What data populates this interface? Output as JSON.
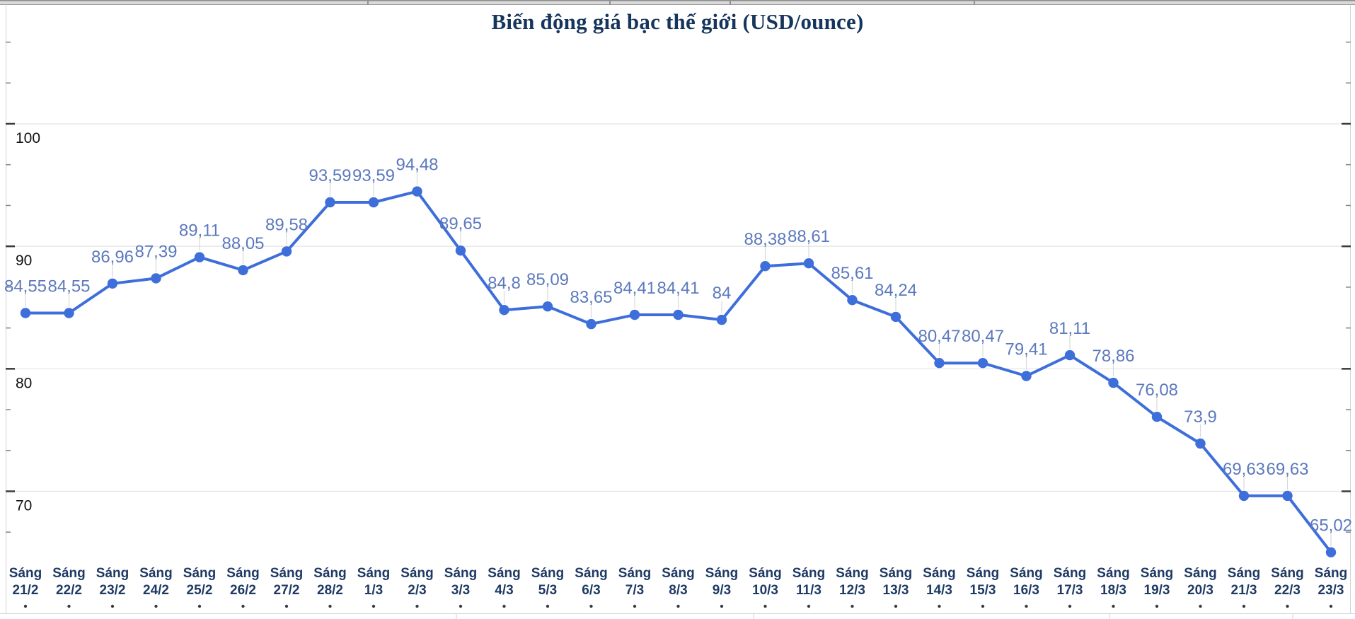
{
  "chart": {
    "title": "Biến động giá bạc thế giới (USD/ounce)"
  },
  "chart_data": {
    "type": "line",
    "title": "Biến động giá bạc thế giới (USD/ounce)",
    "categories": [
      "Sáng 21/2",
      "Sáng 22/2",
      "Sáng 23/2",
      "Sáng 24/2",
      "Sáng 25/2",
      "Sáng 26/2",
      "Sáng 27/2",
      "Sáng 28/2",
      "Sáng 1/3",
      "Sáng 2/3",
      "Sáng 3/3",
      "Sáng 4/3",
      "Sáng 5/3",
      "Sáng 6/3",
      "Sáng 7/3",
      "Sáng 8/3",
      "Sáng 9/3",
      "Sáng 10/3",
      "Sáng 11/3",
      "Sáng 12/3",
      "Sáng 13/3",
      "Sáng 14/3",
      "Sáng 15/3",
      "Sáng 16/3",
      "Sáng 17/3",
      "Sáng 18/3",
      "Sáng 19/3",
      "Sáng 20/3",
      "Sáng 21/3",
      "Sáng 22/3",
      "Sáng 23/3"
    ],
    "values": [
      84.55,
      84.55,
      86.96,
      87.39,
      89.11,
      88.05,
      89.58,
      93.59,
      93.59,
      94.48,
      89.65,
      84.8,
      85.09,
      83.65,
      84.41,
      84.41,
      84,
      88.38,
      88.61,
      85.61,
      84.24,
      80.47,
      80.47,
      79.41,
      81.11,
      78.86,
      76.08,
      73.9,
      69.63,
      69.63,
      65.02
    ],
    "point_labels": [
      "84,55",
      "84,55",
      "86,96",
      "87,39",
      "89,11",
      "88,05",
      "89,58",
      "93,59",
      "93,59",
      "94,48",
      "89,65",
      "84,8",
      "85,09",
      "83,65",
      "84,41",
      "84,41",
      "84",
      "88,38",
      "88,61",
      "85,61",
      "84,24",
      "80,47",
      "80,47",
      "79,41",
      "81,11",
      "78,86",
      "76,08",
      "73,9",
      "69,63",
      "69,63",
      "65,02"
    ],
    "xlabel": "",
    "ylabel": "",
    "y_ticks": [
      100,
      90,
      80,
      70
    ],
    "y_minor_tick_step": 3.3333,
    "ylim": [
      63.4,
      106.9
    ],
    "grid": true,
    "legend_position": "none",
    "colors": {
      "line": "#3d6eda",
      "point": "#3d6eda",
      "point_label": "#5c79be",
      "x_axis_label": "#1e3a64",
      "y_tick_label": "#111111",
      "title": "#16355d",
      "gridline": "#e4e4e4",
      "tick": "#3a3a3a",
      "minor_tick": "#8a8a8a",
      "frame": "#d2d2d2",
      "leader": "#d8d8d8",
      "bottom_dot": "#3c3c3c",
      "top_strip": "#d9d9d9",
      "top_strip_edge": "#9b9b9b"
    }
  }
}
